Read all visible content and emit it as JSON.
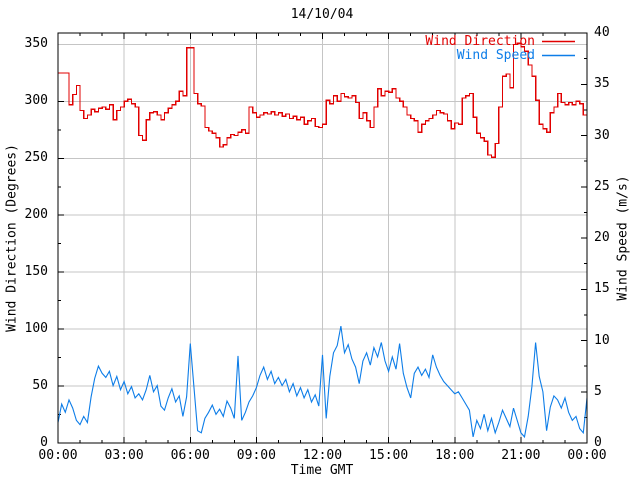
{
  "title": "14/10/04",
  "axes": {
    "x": {
      "label": "Time GMT",
      "tick_labels": [
        "00:00",
        "03:00",
        "06:00",
        "09:00",
        "12:00",
        "15:00",
        "18:00",
        "21:00",
        "00:00"
      ],
      "tick_hours": [
        0,
        3,
        6,
        9,
        12,
        15,
        18,
        21,
        24
      ],
      "minor_tick_every_hours": 1,
      "range_hours": [
        0,
        24
      ]
    },
    "y_left": {
      "label": "Wind Direction (Degrees)",
      "tick_values": [
        0,
        50,
        100,
        150,
        200,
        250,
        300,
        350
      ],
      "minor_tick_every": 25,
      "range": [
        0,
        360
      ]
    },
    "y_right": {
      "label": "Wind Speed (m/s)",
      "tick_values": [
        0,
        5,
        10,
        15,
        20,
        25,
        30,
        35,
        40
      ],
      "minor_tick_every": 2.5,
      "range": [
        0,
        40
      ]
    }
  },
  "legend": [
    {
      "label": "Wind Direction",
      "color": "#e10000"
    },
    {
      "label": "Wind Speed",
      "color": "#0d7de8"
    }
  ],
  "colors": {
    "background": "#ffffff",
    "frame": "#000000",
    "grid": "#c5c5c5",
    "wind_direction": "#e10000",
    "wind_speed": "#0d7de8"
  },
  "chart_data": {
    "type": "line",
    "title": "14/10/04",
    "xlabel": "Time GMT",
    "xlim_hours": [
      0,
      24
    ],
    "grid": true,
    "legend_position": "top-right",
    "x_start_hour": 0,
    "x_step_minutes": 10,
    "series": [
      {
        "name": "Wind Direction",
        "axis": "left",
        "ylabel": "Wind Direction (Degrees)",
        "ylim": [
          0,
          360
        ],
        "style": "steps",
        "color": "#e10000",
        "values": [
          325,
          325,
          325,
          297,
          306,
          314,
          292,
          285,
          288,
          293,
          291,
          294,
          295,
          293,
          297,
          284,
          292,
          295,
          300,
          302,
          298,
          295,
          270,
          266,
          284,
          290,
          291,
          288,
          284,
          290,
          294,
          297,
          300,
          309,
          305,
          347,
          347,
          307,
          298,
          296,
          277,
          274,
          272,
          268,
          260,
          262,
          268,
          271,
          270,
          273,
          275,
          272,
          295,
          290,
          286,
          288,
          290,
          289,
          291,
          288,
          290,
          287,
          289,
          285,
          287,
          284,
          286,
          280,
          283,
          285,
          278,
          277,
          280,
          301,
          298,
          305,
          300,
          307,
          304,
          303,
          305,
          299,
          285,
          290,
          283,
          277,
          295,
          311,
          305,
          309,
          308,
          311,
          303,
          300,
          295,
          288,
          285,
          283,
          273,
          280,
          283,
          285,
          288,
          292,
          290,
          289,
          283,
          276,
          281,
          280,
          303,
          305,
          307,
          286,
          272,
          268,
          265,
          253,
          251,
          263,
          295,
          322,
          324,
          312,
          350,
          351,
          348,
          344,
          332,
          322,
          301,
          280,
          276,
          273,
          290,
          295,
          307,
          299,
          297,
          299,
          297,
          300,
          298,
          288,
          285
        ]
      },
      {
        "name": "Wind Speed",
        "axis": "right",
        "ylabel": "Wind Speed (m/s)",
        "ylim": [
          0,
          40
        ],
        "style": "line",
        "color": "#0d7de8",
        "values": [
          2.0,
          3.8,
          3.0,
          4.2,
          3.4,
          2.2,
          1.8,
          2.6,
          2.0,
          4.5,
          6.3,
          7.5,
          6.8,
          6.4,
          7.0,
          5.6,
          6.5,
          5.2,
          6.0,
          4.8,
          5.5,
          4.4,
          4.8,
          4.2,
          5.2,
          6.6,
          5.0,
          5.6,
          3.6,
          3.2,
          4.4,
          5.3,
          4.0,
          4.6,
          2.6,
          4.5,
          9.7,
          5.5,
          1.2,
          1.0,
          2.4,
          3.0,
          3.7,
          2.8,
          3.3,
          2.6,
          4.1,
          3.4,
          2.4,
          8.5,
          2.2,
          3.0,
          4.0,
          4.6,
          5.4,
          6.6,
          7.4,
          6.2,
          7.0,
          5.8,
          6.4,
          5.6,
          6.2,
          5.0,
          5.8,
          4.6,
          5.4,
          4.4,
          5.2,
          4.0,
          4.7,
          3.6,
          8.6,
          2.4,
          6.5,
          8.8,
          9.5,
          11.4,
          8.8,
          9.6,
          8.2,
          7.4,
          5.8,
          8.0,
          8.8,
          7.6,
          9.3,
          8.4,
          9.8,
          8.0,
          7.0,
          8.4,
          7.2,
          9.7,
          6.8,
          5.4,
          4.4,
          6.8,
          7.4,
          6.6,
          7.2,
          6.4,
          8.6,
          7.4,
          6.6,
          6.0,
          5.6,
          5.2,
          4.8,
          5.0,
          4.4,
          3.8,
          3.2,
          0.6,
          2.2,
          1.4,
          2.8,
          1.2,
          2.4,
          1.0,
          2.0,
          3.2,
          2.4,
          1.6,
          3.4,
          2.2,
          1.0,
          0.6,
          2.6,
          5.5,
          9.8,
          6.5,
          5.0,
          1.2,
          3.5,
          4.6,
          4.2,
          3.4,
          4.4,
          3.0,
          2.2,
          2.6,
          1.4,
          1.0,
          4.4
        ]
      }
    ]
  }
}
